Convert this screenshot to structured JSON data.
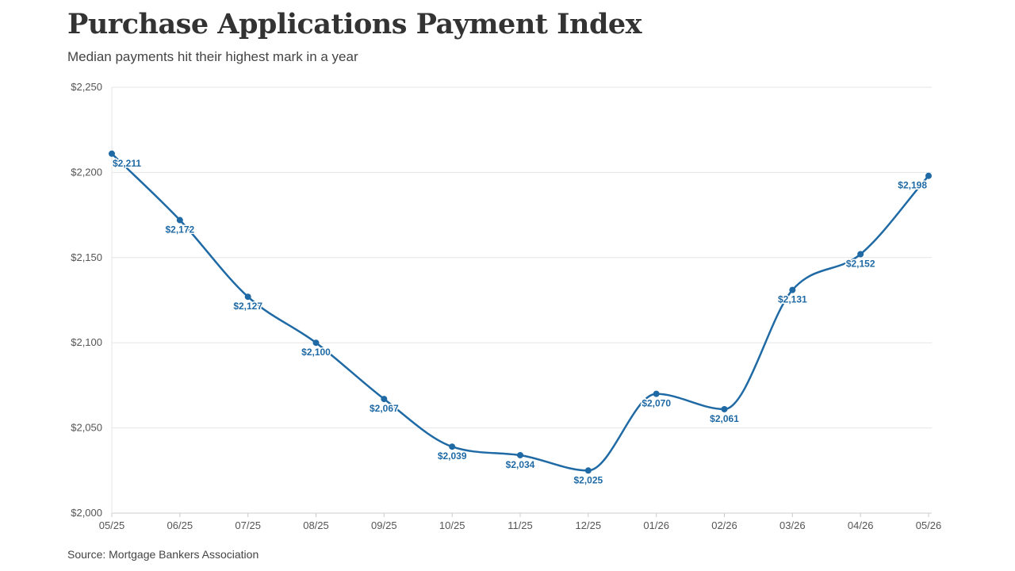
{
  "title": "Purchase Applications Payment Index",
  "subtitle": "Median payments hit their highest mark in a year",
  "source": "Source: Mortgage Bankers Association",
  "colors": {
    "line": "#1f6aa5",
    "grid": "#e6e6e6",
    "axis": "#cccccc",
    "text": "#555555"
  },
  "chart_data": {
    "type": "line",
    "title": "Purchase Applications Payment Index",
    "subtitle": "Median payments hit their highest mark in a year",
    "xlabel": "",
    "ylabel": "",
    "categories": [
      "05/25",
      "06/25",
      "07/25",
      "08/25",
      "09/25",
      "10/25",
      "11/25",
      "12/25",
      "01/26",
      "02/26",
      "03/26",
      "04/26",
      "05/26"
    ],
    "series": [
      {
        "values": [
          2211,
          2172,
          2127,
          2100,
          2067,
          2039,
          2034,
          2025,
          2070,
          2061,
          2131,
          2152,
          2198
        ]
      }
    ],
    "data_labels": [
      "$2,211",
      "$2,172",
      "$2,127",
      "$2,100",
      "$2,067",
      "$2,039",
      "$2,034",
      "$2,025",
      "$2,070",
      "$2,061",
      "$2,131",
      "$2,152",
      "$2,198"
    ],
    "ylim": [
      2000,
      2250
    ],
    "yticks": [
      2000,
      2050,
      2100,
      2150,
      2200,
      2250
    ],
    "ytick_labels": [
      "$2,000",
      "$2,050",
      "$2,100",
      "$2,150",
      "$2,200",
      "$2,250"
    ],
    "grid": true,
    "smooth": true,
    "legend": "none"
  }
}
